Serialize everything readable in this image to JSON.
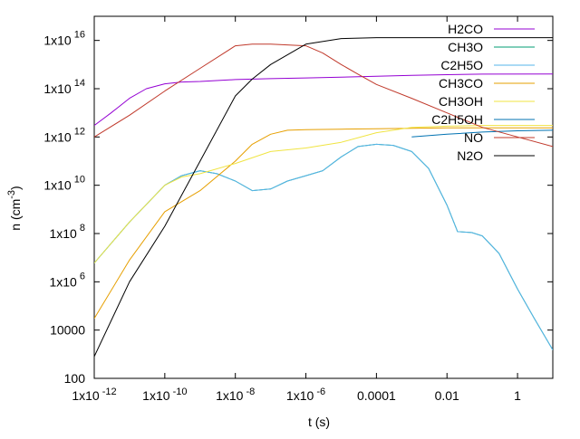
{
  "chart_data": {
    "type": "line",
    "title": "",
    "xlabel": "t (s)",
    "ylabel": "n (cm^-3)",
    "x_scale": "log",
    "y_scale": "log",
    "xlim": [
      1e-12,
      10
    ],
    "ylim": [
      100,
      1e+17
    ],
    "grid": false,
    "legend_position": "top-right",
    "x_ticks": [
      {
        "value": 1e-12,
        "label": "1x10",
        "exp": "-12"
      },
      {
        "value": 1e-10,
        "label": "1x10",
        "exp": "-10"
      },
      {
        "value": 1e-08,
        "label": "1x10",
        "exp": "-8"
      },
      {
        "value": 1e-06,
        "label": "1x10",
        "exp": "-6"
      },
      {
        "value": 0.0001,
        "label": "0.0001",
        "exp": ""
      },
      {
        "value": 0.01,
        "label": "0.01",
        "exp": ""
      },
      {
        "value": 1,
        "label": "1",
        "exp": ""
      }
    ],
    "y_ticks": [
      {
        "value": 100,
        "label": "100",
        "exp": ""
      },
      {
        "value": 10000.0,
        "label": "10000",
        "exp": ""
      },
      {
        "value": 1000000.0,
        "label": "1x10",
        "exp": "6"
      },
      {
        "value": 100000000.0,
        "label": "1x10",
        "exp": "8"
      },
      {
        "value": 10000000000.0,
        "label": "1x10",
        "exp": "10"
      },
      {
        "value": 1000000000000.0,
        "label": "1x10",
        "exp": "12"
      },
      {
        "value": 100000000000000.0,
        "label": "1x10",
        "exp": "14"
      },
      {
        "value": 1e+16,
        "label": "1x10",
        "exp": "16"
      }
    ],
    "series": [
      {
        "name": "H2CO",
        "color": "#9400d3",
        "x": [
          1e-12,
          3e-12,
          1e-11,
          3e-11,
          1e-10,
          3e-10,
          1e-09,
          1e-08,
          1e-07,
          1e-06,
          1e-05,
          0.0001,
          0.001,
          0.01,
          0.1,
          10
        ],
        "y": [
          3000000000000.0,
          10000000000000.0,
          40000000000000.0,
          100000000000000.0,
          160000000000000.0,
          190000000000000.0,
          200000000000000.0,
          240000000000000.0,
          260000000000000.0,
          280000000000000.0,
          300000000000000.0,
          330000000000000.0,
          360000000000000.0,
          380000000000000.0,
          400000000000000.0,
          410000000000000.0
        ]
      },
      {
        "name": "CH3O",
        "color": "#009e73",
        "x": [
          1e-12,
          1e-11,
          1e-10,
          3e-10,
          1e-09,
          3e-09,
          1e-08,
          3e-08,
          1e-07,
          3e-07,
          1e-06,
          3e-06,
          1e-05,
          3e-05,
          0.0001,
          0.0003,
          0.001,
          0.003,
          0.01,
          0.02,
          0.05,
          0.1,
          0.3,
          1,
          3,
          10
        ],
        "y": [
          6000000.0,
          300000000.0,
          10000000000.0,
          25000000000.0,
          40000000000.0,
          30000000000.0,
          15000000000.0,
          6000000000.0,
          7000000000.0,
          15000000000.0,
          25000000000.0,
          40000000000.0,
          150000000000.0,
          400000000000.0,
          500000000000.0,
          450000000000.0,
          250000000000.0,
          50000000000.0,
          1500000000.0,
          120000000.0,
          110000000.0,
          80000000.0,
          15000000.0,
          500000.0,
          30000.0,
          1500.0
        ]
      },
      {
        "name": "C2H5O",
        "color": "#56b4e9",
        "x": [
          1e-12,
          1e-11,
          1e-10,
          3e-10,
          1e-09,
          3e-09,
          1e-08,
          3e-08,
          1e-07,
          3e-07,
          1e-06,
          3e-06,
          1e-05,
          3e-05,
          0.0001,
          0.0003,
          0.001,
          0.003,
          0.01,
          0.02,
          0.05,
          0.1,
          0.3,
          1,
          3,
          10
        ],
        "y": [
          6000000.0,
          300000000.0,
          10000000000.0,
          25000000000.0,
          40000000000.0,
          30000000000.0,
          15000000000.0,
          6000000000.0,
          7000000000.0,
          15000000000.0,
          25000000000.0,
          40000000000.0,
          150000000000.0,
          400000000000.0,
          500000000000.0,
          450000000000.0,
          250000000000.0,
          50000000000.0,
          1500000000.0,
          120000000.0,
          110000000.0,
          80000000.0,
          15000000.0,
          500000.0,
          30000.0,
          1500.0
        ]
      },
      {
        "name": "CH3CO",
        "color": "#e69f00",
        "x": [
          1e-12,
          1e-11,
          1e-10,
          1e-09,
          1e-08,
          3e-08,
          1e-07,
          3e-07,
          1e-06,
          1e-05,
          0.0001,
          0.001,
          0.01,
          0.1,
          1,
          3,
          10
        ],
        "y": [
          30000.0,
          8000000.0,
          800000000.0,
          6000000000.0,
          100000000000.0,
          500000000000.0,
          1300000000000.0,
          1900000000000.0,
          2000000000000.0,
          2100000000000.0,
          2200000000000.0,
          2300000000000.0,
          2400000000000.0,
          2400000000000.0,
          2400000000000.0,
          2400000000000.0,
          2400000000000.0
        ]
      },
      {
        "name": "CH3OH",
        "color": "#f0e442",
        "x": [
          1e-12,
          1e-11,
          1e-10,
          3e-10,
          1e-09,
          1e-08,
          1e-07,
          1e-06,
          1e-05,
          0.0001,
          0.001,
          0.01,
          0.1,
          1,
          10
        ],
        "y": [
          6000000.0,
          300000000.0,
          10000000000.0,
          22000000000.0,
          30000000000.0,
          80000000000.0,
          250000000000.0,
          350000000000.0,
          600000000000.0,
          1500000000000.0,
          2500000000000.0,
          2800000000000.0,
          3000000000000.0,
          3000000000000.0,
          3000000000000.0
        ]
      },
      {
        "name": "C2H5OH",
        "color": "#0072b2",
        "x": [
          0.001,
          0.01,
          0.1,
          1,
          10
        ],
        "y": [
          1000000000000.0,
          1300000000000.0,
          1600000000000.0,
          1800000000000.0,
          1900000000000.0
        ]
      },
      {
        "name": "NO",
        "color": "#c0392b",
        "x": [
          1e-12,
          1e-11,
          1e-10,
          1e-09,
          1e-08,
          3e-08,
          1e-07,
          1e-06,
          3e-06,
          1e-05,
          3e-05,
          0.0001,
          0.001,
          0.01,
          0.1,
          1,
          10
        ],
        "y": [
          1000000000000.0,
          8000000000000.0,
          80000000000000.0,
          700000000000000.0,
          6000000000000000.0,
          7000000000000000.0,
          7000000000000000.0,
          6000000000000000.0,
          3000000000000000.0,
          1000000000000000.0,
          400000000000000.0,
          150000000000000.0,
          40000000000000.0,
          10000000000000.0,
          2500000000000.0,
          1000000000000.0,
          400000000000.0
        ]
      },
      {
        "name": "N2O",
        "color": "#000000",
        "x": [
          1e-12,
          1e-11,
          1e-10,
          1e-09,
          1e-08,
          3e-08,
          1e-07,
          1e-06,
          1e-05,
          0.0001,
          0.001,
          0.01,
          0.1,
          1,
          10
        ],
        "y": [
          800,
          1000000.0,
          200000000.0,
          100000000000.0,
          50000000000000.0,
          250000000000000.0,
          1000000000000000.0,
          7000000000000000.0,
          1.2e+16,
          1.3e+16,
          1.3e+16,
          1.3e+16,
          1.3e+16,
          1.3e+16,
          1.3e+16
        ]
      }
    ]
  }
}
